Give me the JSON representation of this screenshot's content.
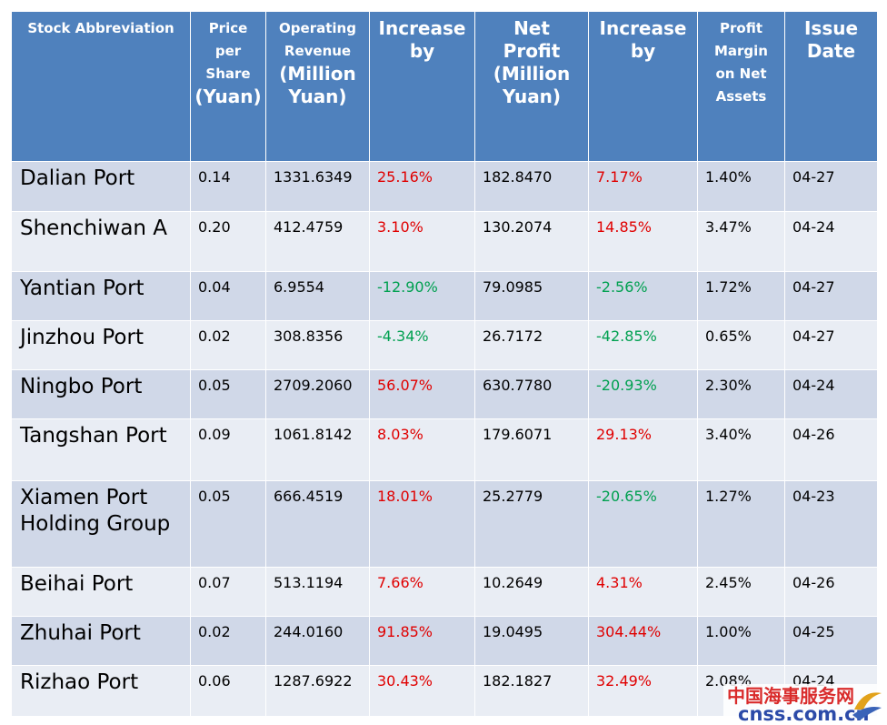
{
  "headers": [
    {
      "lines": [
        {
          "t": "Stock Abbreviation",
          "s": "sm"
        }
      ]
    },
    {
      "lines": [
        {
          "t": "Price",
          "s": "sm"
        },
        {
          "t": "per",
          "s": "sm"
        },
        {
          "t": "Share",
          "s": "sm"
        },
        {
          "t": "(Yuan)",
          "s": "big"
        }
      ]
    },
    {
      "lines": [
        {
          "t": "Operating",
          "s": "sm"
        },
        {
          "t": "Revenue",
          "s": "sm"
        },
        {
          "t": "(Million",
          "s": "big"
        },
        {
          "t": "Yuan)",
          "s": "big"
        }
      ]
    },
    {
      "lines": [
        {
          "t": "Increase",
          "s": "big"
        },
        {
          "t": "by",
          "s": "big"
        }
      ]
    },
    {
      "lines": [
        {
          "t": "Net",
          "s": "big"
        },
        {
          "t": "Profit",
          "s": "big"
        },
        {
          "t": "(Million",
          "s": "big"
        },
        {
          "t": "Yuan)",
          "s": "big"
        }
      ]
    },
    {
      "lines": [
        {
          "t": "Increase",
          "s": "big"
        },
        {
          "t": "by",
          "s": "big"
        }
      ]
    },
    {
      "lines": [
        {
          "t": "Profit",
          "s": "sm"
        },
        {
          "t": "Margin",
          "s": "sm"
        },
        {
          "t": "on Net",
          "s": "sm"
        },
        {
          "t": "Assets",
          "s": "sm"
        }
      ]
    },
    {
      "lines": [
        {
          "t": "Issue",
          "s": "big"
        },
        {
          "t": "Date",
          "s": "big"
        }
      ]
    }
  ],
  "rows": [
    {
      "name": "Dalian Port",
      "price": "0.14",
      "revenue": "1331.6349",
      "rev_increase": "25.16%",
      "net_profit": "182.8470",
      "np_increase": "7.17%",
      "margin": "1.40%",
      "date": "04-27"
    },
    {
      "name": "Shenchiwan A",
      "price": "0.20",
      "revenue": "412.4759",
      "rev_increase": "3.10%",
      "net_profit": "130.2074",
      "np_increase": "14.85%",
      "margin": "3.47%",
      "date": "04-24"
    },
    {
      "name": "Yantian Port",
      "price": "0.04",
      "revenue": "6.9554",
      "rev_increase": "-12.90%",
      "net_profit": "79.0985",
      "np_increase": "-2.56%",
      "margin": "1.72%",
      "date": "04-27"
    },
    {
      "name": "Jinzhou Port",
      "price": "0.02",
      "revenue": "308.8356",
      "rev_increase": "-4.34%",
      "net_profit": "26.7172",
      "np_increase": "-42.85%",
      "margin": "0.65%",
      "date": "04-27"
    },
    {
      "name": "Ningbo Port",
      "price": "0.05",
      "revenue": "2709.2060",
      "rev_increase": "56.07%",
      "net_profit": "630.7780",
      "np_increase": "-20.93%",
      "margin": "2.30%",
      "date": "04-24"
    },
    {
      "name": "Tangshan Port",
      "price": "0.09",
      "revenue": "1061.8142",
      "rev_increase": "8.03%",
      "net_profit": "179.6071",
      "np_increase": "29.13%",
      "margin": "3.40%",
      "date": "04-26"
    },
    {
      "name": "Xiamen Port Holding Group",
      "price": "0.05",
      "revenue": "666.4519",
      "rev_increase": "18.01%",
      "net_profit": "25.2779",
      "np_increase": "-20.65%",
      "margin": "1.27%",
      "date": "04-23"
    },
    {
      "name": "Beihai Port",
      "price": "0.07",
      "revenue": "513.1194",
      "rev_increase": "7.66%",
      "net_profit": "10.2649",
      "np_increase": "4.31%",
      "margin": "2.45%",
      "date": "04-26"
    },
    {
      "name": "Zhuhai Port",
      "price": "0.02",
      "revenue": "244.0160",
      "rev_increase": "91.85%",
      "net_profit": "19.0495",
      "np_increase": "304.44%",
      "margin": "1.00%",
      "date": "04-25"
    },
    {
      "name": "Rizhao Port",
      "price": "0.06",
      "revenue": "1287.6922",
      "rev_increase": "30.43%",
      "net_profit": "182.1827",
      "np_increase": "32.49%",
      "margin": "2.08%",
      "date": "04-24"
    }
  ],
  "colors": {
    "header_bg": "#4f81bd",
    "row_dark": "#d0d8e8",
    "row_light": "#e9edf4",
    "increase": "#e00000",
    "decrease": "#00a050"
  },
  "watermark": {
    "cn": "中国海事服务网",
    "en": "cnss.com.cn"
  }
}
